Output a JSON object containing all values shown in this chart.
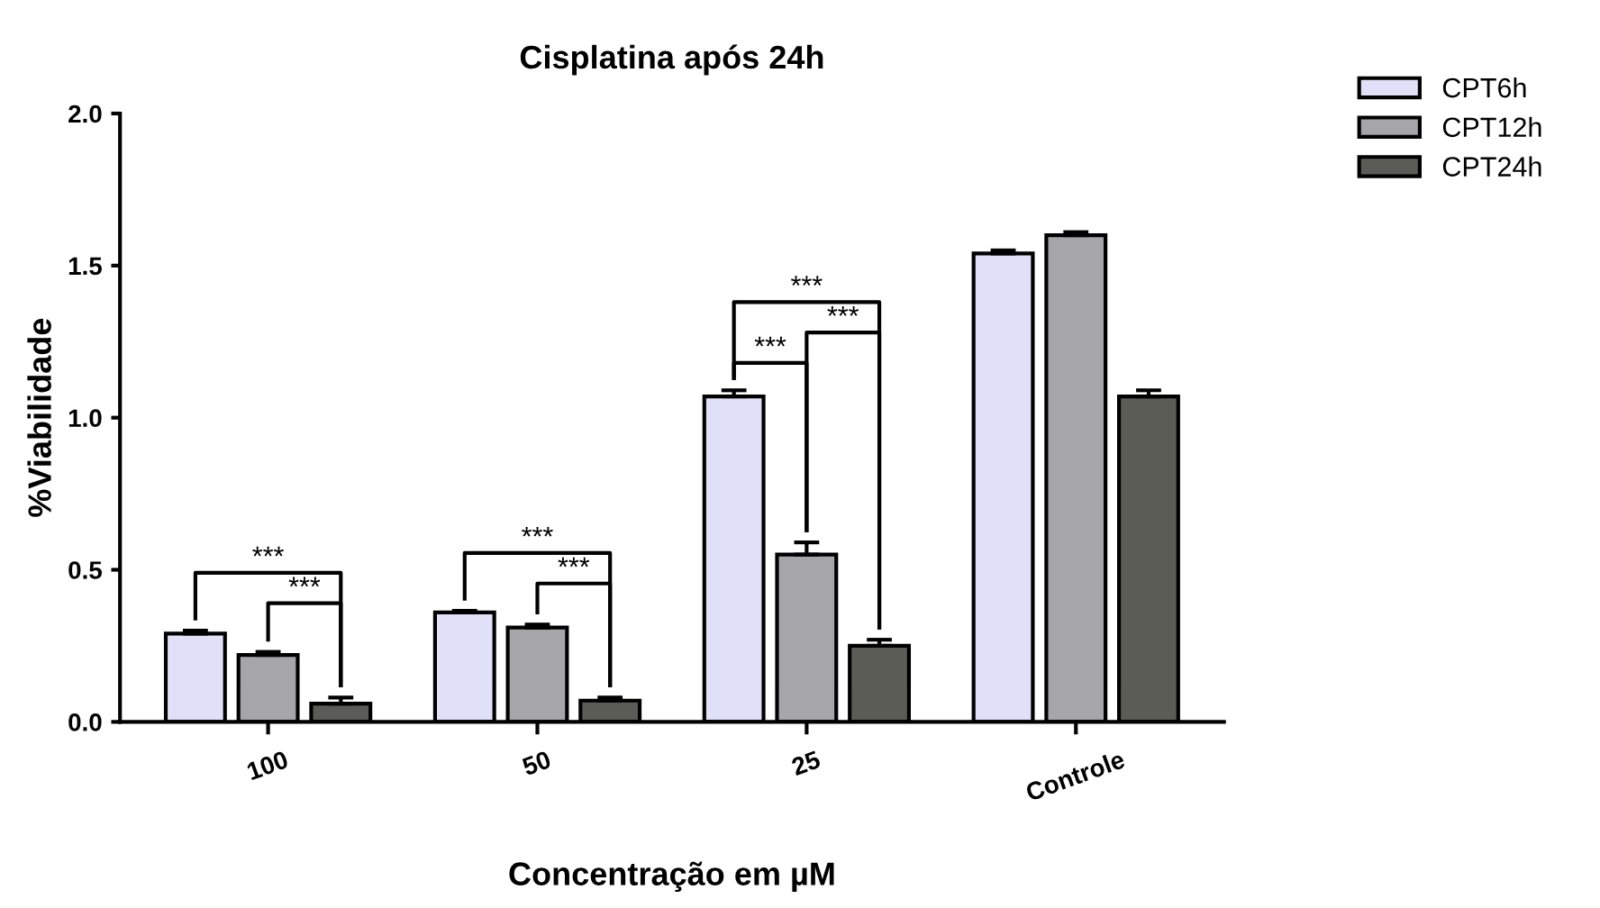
{
  "chart_data": {
    "type": "bar",
    "title": "Cisplatina após 24h",
    "xlabel": "Concentração em µM",
    "ylabel": "%Viabilidade",
    "categories": [
      "100",
      "50",
      "25",
      "Controle"
    ],
    "series": [
      {
        "name": "CPT6h",
        "color": "#e0e0f8",
        "values": [
          0.29,
          0.36,
          1.07,
          1.54
        ],
        "errors": [
          0.01,
          0.005,
          0.02,
          0.01
        ]
      },
      {
        "name": "CPT12h",
        "color": "#a6a6aa",
        "values": [
          0.22,
          0.31,
          0.55,
          1.6
        ],
        "errors": [
          0.01,
          0.01,
          0.04,
          0.01
        ]
      },
      {
        "name": "CPT24h",
        "color": "#5a5c55",
        "values": [
          0.06,
          0.07,
          0.25,
          1.07
        ],
        "errors": [
          0.02,
          0.01,
          0.02,
          0.02
        ]
      }
    ],
    "ylim": [
      0,
      2.0
    ],
    "yticks": [
      {
        "value": 0,
        "label": "0.0"
      },
      {
        "value": 0.5,
        "label": "0.5"
      },
      {
        "value": 1.0,
        "label": "1.0"
      },
      {
        "value": 1.5,
        "label": "1.5"
      },
      {
        "value": 2.0,
        "label": "2.0"
      }
    ],
    "grid": false,
    "legend": "top right",
    "annotations": [
      "***",
      "***",
      "***",
      "***",
      "***",
      "***",
      "***"
    ]
  }
}
